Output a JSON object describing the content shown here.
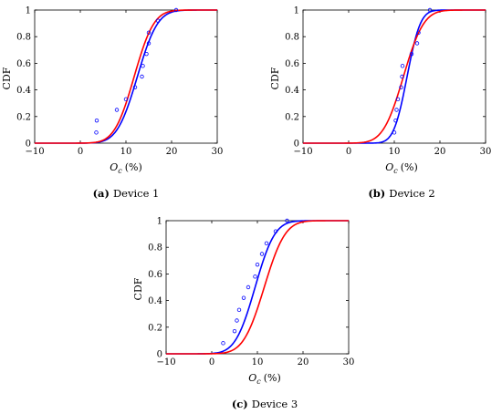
{
  "chart_data": [
    {
      "type": "line",
      "caption_prefix": "(a)",
      "caption_text": "Device 1",
      "xlabel": "O",
      "xlabel_sub": "c",
      "xlabel_unit": "(%)",
      "ylabel": "CDF",
      "xlim": [
        -10,
        30
      ],
      "ylim": [
        0,
        1
      ],
      "xticks": [
        "−10",
        "0",
        "10",
        "20",
        "30"
      ],
      "yticks": [
        "0",
        "0.2",
        "0.4",
        "0.6",
        "0.8",
        "1"
      ],
      "series": [
        {
          "color": "#0000ff",
          "kind": "cdf",
          "mu": 12.5,
          "sigma": 3.5
        },
        {
          "color": "#ff0000",
          "kind": "cdf",
          "mu": 11.8,
          "sigma": 3.4
        },
        {
          "color": "#0000ff",
          "kind": "markers",
          "points": [
            [
              3.5,
              0.08
            ],
            [
              3.6,
              0.17
            ],
            [
              8,
              0.25
            ],
            [
              10,
              0.33
            ],
            [
              12,
              0.42
            ],
            [
              13.5,
              0.5
            ],
            [
              13.7,
              0.58
            ],
            [
              14.5,
              0.67
            ],
            [
              15,
              0.75
            ],
            [
              15,
              0.83
            ],
            [
              17,
              0.92
            ],
            [
              21,
              1.0
            ]
          ]
        }
      ]
    },
    {
      "type": "line",
      "caption_prefix": "(b)",
      "caption_text": "Device 2",
      "xlabel": "O",
      "xlabel_sub": "c",
      "xlabel_unit": "(%)",
      "ylabel": "CDF",
      "xlim": [
        -10,
        30
      ],
      "ylim": [
        0,
        1
      ],
      "xticks": [
        "−10",
        "0",
        "10",
        "20",
        "30"
      ],
      "yticks": [
        "0",
        "0.2",
        "0.4",
        "0.6",
        "0.8",
        "1"
      ],
      "series": [
        {
          "color": "#0000ff",
          "kind": "cdf",
          "mu": 12.8,
          "sigma": 2.3
        },
        {
          "color": "#ff0000",
          "kind": "cdf",
          "mu": 12.0,
          "sigma": 3.5
        },
        {
          "color": "#0000ff",
          "kind": "markers",
          "points": [
            [
              10,
              0.08
            ],
            [
              10.3,
              0.17
            ],
            [
              10.5,
              0.25
            ],
            [
              10.8,
              0.33
            ],
            [
              11.5,
              0.42
            ],
            [
              11.7,
              0.5
            ],
            [
              11.8,
              0.58
            ],
            [
              13.8,
              0.67
            ],
            [
              15,
              0.75
            ],
            [
              15.3,
              0.83
            ],
            [
              17.8,
              1.0
            ]
          ]
        }
      ]
    },
    {
      "type": "line",
      "caption_prefix": "(c)",
      "caption_text": "Device 3",
      "xlabel": "O",
      "xlabel_sub": "c",
      "xlabel_unit": "(%)",
      "ylabel": "CDF",
      "xlim": [
        -10,
        30
      ],
      "ylim": [
        0,
        1
      ],
      "xticks": [
        "−10",
        "0",
        "10",
        "20",
        "30"
      ],
      "yticks": [
        "0",
        "0.2",
        "0.4",
        "0.6",
        "0.8",
        "1"
      ],
      "series": [
        {
          "color": "#0000ff",
          "kind": "cdf",
          "mu": 9.5,
          "sigma": 3.4
        },
        {
          "color": "#ff0000",
          "kind": "cdf",
          "mu": 11.5,
          "sigma": 3.6
        },
        {
          "color": "#0000ff",
          "kind": "markers",
          "points": [
            [
              2.5,
              0.08
            ],
            [
              5,
              0.17
            ],
            [
              5.5,
              0.25
            ],
            [
              6,
              0.33
            ],
            [
              7,
              0.42
            ],
            [
              8,
              0.5
            ],
            [
              9.5,
              0.58
            ],
            [
              10,
              0.67
            ],
            [
              11,
              0.75
            ],
            [
              12,
              0.83
            ],
            [
              14,
              0.92
            ],
            [
              16.5,
              1.0
            ]
          ]
        }
      ]
    }
  ]
}
